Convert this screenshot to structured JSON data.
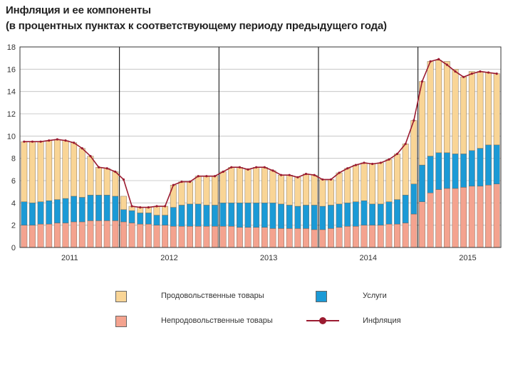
{
  "chart_data": {
    "type": "bar",
    "stacked": true,
    "title": "Инфляция и ее компоненты",
    "subtitle": "(в процентных пунктах к соответствующему периоду предыдущего года)",
    "ylim": [
      0,
      18
    ],
    "yticks": [
      0,
      2,
      4,
      6,
      8,
      10,
      12,
      14,
      16,
      18
    ],
    "year_labels": [
      "2011",
      "2012",
      "2013",
      "2014",
      "2015"
    ],
    "grid": true,
    "legend_position": "bottom",
    "colors": {
      "food": "#f9d596",
      "services": "#1b9ad6",
      "nonfood": "#f4a38f",
      "inflation": "#9b1b30"
    },
    "legend": {
      "food": "Продовольственные товары",
      "services": "Услуги",
      "nonfood": "Непродовольственные товары",
      "inflation": "Инфляция"
    },
    "series": [
      {
        "name": "Непродовольственные товары",
        "key": "nonfood",
        "values": [
          2.0,
          2.0,
          2.1,
          2.1,
          2.2,
          2.2,
          2.3,
          2.3,
          2.4,
          2.4,
          2.4,
          2.4,
          2.3,
          2.2,
          2.1,
          2.1,
          2.0,
          2.0,
          1.9,
          1.9,
          1.9,
          1.9,
          1.9,
          1.9,
          1.9,
          1.9,
          1.8,
          1.8,
          1.8,
          1.8,
          1.7,
          1.7,
          1.7,
          1.7,
          1.7,
          1.6,
          1.6,
          1.7,
          1.8,
          1.9,
          1.9,
          2.0,
          2.0,
          2.0,
          2.1,
          2.1,
          2.2,
          3.0,
          4.1,
          4.9,
          5.2,
          5.3,
          5.3,
          5.4,
          5.5,
          5.5,
          5.6,
          5.7
        ]
      },
      {
        "name": "Услуги",
        "key": "services",
        "values": [
          2.1,
          2.0,
          2.0,
          2.1,
          2.1,
          2.2,
          2.3,
          2.2,
          2.3,
          2.3,
          2.3,
          2.2,
          1.1,
          1.1,
          1.0,
          1.0,
          0.9,
          0.9,
          1.7,
          1.9,
          2.0,
          2.0,
          1.9,
          1.9,
          2.1,
          2.1,
          2.2,
          2.2,
          2.2,
          2.2,
          2.3,
          2.2,
          2.1,
          2.0,
          2.1,
          2.2,
          2.1,
          2.1,
          2.1,
          2.1,
          2.2,
          2.2,
          1.9,
          1.9,
          2.0,
          2.2,
          2.5,
          2.7,
          3.3,
          3.3,
          3.3,
          3.2,
          3.1,
          3.0,
          3.2,
          3.4,
          3.6,
          3.5
        ]
      },
      {
        "name": "Продовольственные товары",
        "key": "food",
        "values": [
          5.4,
          5.5,
          5.4,
          5.4,
          5.4,
          5.2,
          4.8,
          4.4,
          3.5,
          2.5,
          2.4,
          2.2,
          1.2,
          0.4,
          0.5,
          0.5,
          0.8,
          0.8,
          2.0,
          2.1,
          2.0,
          2.5,
          2.6,
          2.6,
          2.8,
          3.2,
          3.2,
          3.0,
          3.2,
          3.2,
          2.9,
          2.6,
          2.7,
          2.6,
          2.8,
          2.7,
          2.4,
          2.3,
          2.8,
          3.1,
          3.3,
          3.4,
          3.6,
          3.7,
          3.8,
          4.1,
          4.6,
          5.7,
          7.5,
          8.5,
          8.3,
          8.2,
          7.6,
          6.9,
          7.1,
          6.9,
          6.5,
          6.4
        ]
      },
      {
        "name": "Инфляция",
        "key": "inflation",
        "type": "line",
        "values": [
          9.5,
          9.5,
          9.5,
          9.6,
          9.7,
          9.6,
          9.4,
          8.9,
          8.2,
          7.2,
          7.1,
          6.8,
          6.1,
          3.7,
          3.6,
          3.6,
          3.7,
          3.7,
          5.6,
          5.9,
          5.9,
          6.4,
          6.4,
          6.4,
          6.8,
          7.2,
          7.2,
          7.0,
          7.2,
          7.2,
          6.9,
          6.5,
          6.5,
          6.3,
          6.6,
          6.5,
          6.1,
          6.1,
          6.7,
          7.1,
          7.4,
          7.6,
          7.5,
          7.6,
          7.9,
          8.4,
          9.3,
          11.4,
          14.9,
          16.7,
          16.9,
          16.4,
          15.8,
          15.3,
          15.6,
          15.8,
          15.7,
          15.6
        ]
      }
    ]
  }
}
